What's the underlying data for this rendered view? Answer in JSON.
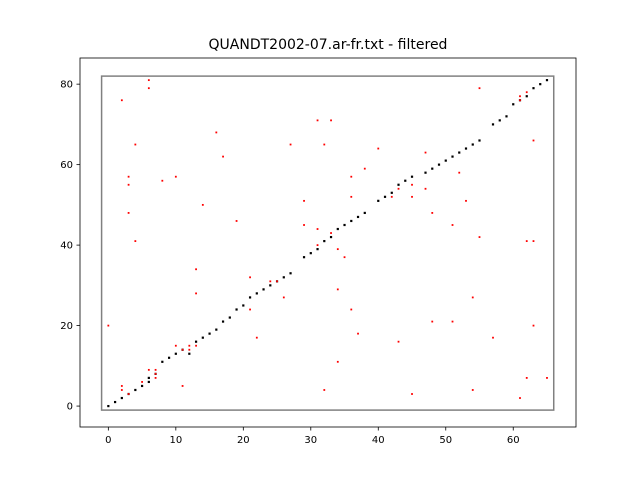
{
  "chart_data": {
    "type": "scatter",
    "title": "QUANDT2002-07.ar-fr.txt - filtered",
    "xlabel": "",
    "ylabel": "",
    "xlim": [
      -4.2,
      69.3
    ],
    "ylim": [
      -5.2,
      86.5
    ],
    "xticks": [
      0,
      10,
      20,
      30,
      40,
      50,
      60
    ],
    "yticks": [
      0,
      20,
      40,
      60,
      80
    ],
    "grid": false,
    "colors": {
      "aligned": "#000000",
      "filtered": "#ff0000",
      "box": "#808080"
    },
    "box": {
      "x": [
        -1,
        66
      ],
      "y": [
        -1,
        82
      ]
    },
    "series": [
      {
        "marker": "aligned",
        "points": [
          [
            0,
            0
          ],
          [
            1,
            1
          ],
          [
            2,
            2
          ],
          [
            3,
            3
          ],
          [
            4,
            4
          ],
          [
            5,
            5
          ],
          [
            6,
            6
          ],
          [
            6,
            7
          ],
          [
            7,
            8
          ],
          [
            8,
            11
          ],
          [
            9,
            12
          ],
          [
            10,
            13
          ],
          [
            11,
            14
          ],
          [
            12,
            13
          ],
          [
            13,
            16
          ],
          [
            14,
            17
          ],
          [
            15,
            18
          ],
          [
            16,
            19
          ],
          [
            17,
            21
          ],
          [
            18,
            22
          ],
          [
            19,
            24
          ],
          [
            20,
            25
          ],
          [
            21,
            27
          ],
          [
            22,
            28
          ],
          [
            23,
            29
          ],
          [
            24,
            30
          ],
          [
            25,
            31
          ],
          [
            26,
            32
          ],
          [
            27,
            33
          ],
          [
            29,
            37
          ],
          [
            30,
            38
          ],
          [
            31,
            39
          ],
          [
            32,
            41
          ],
          [
            33,
            42
          ],
          [
            34,
            44
          ],
          [
            35,
            45
          ],
          [
            36,
            46
          ],
          [
            37,
            47
          ],
          [
            38,
            48
          ],
          [
            40,
            51
          ],
          [
            41,
            52
          ],
          [
            42,
            53
          ],
          [
            43,
            55
          ],
          [
            44,
            56
          ],
          [
            45,
            57
          ],
          [
            47,
            58
          ],
          [
            48,
            59
          ],
          [
            49,
            60
          ],
          [
            50,
            61
          ],
          [
            51,
            62
          ],
          [
            52,
            63
          ],
          [
            53,
            64
          ],
          [
            54,
            65
          ],
          [
            55,
            66
          ],
          [
            57,
            70
          ],
          [
            58,
            71
          ],
          [
            59,
            72
          ],
          [
            60,
            75
          ],
          [
            61,
            76
          ],
          [
            62,
            77
          ],
          [
            63,
            79
          ],
          [
            64,
            80
          ],
          [
            65,
            81
          ]
        ]
      },
      {
        "marker": "filtered",
        "points": [
          [
            0,
            20
          ],
          [
            2,
            76
          ],
          [
            2,
            5
          ],
          [
            2,
            4
          ],
          [
            3,
            3
          ],
          [
            3,
            57
          ],
          [
            3,
            55
          ],
          [
            3,
            48
          ],
          [
            4,
            65
          ],
          [
            4,
            41
          ],
          [
            5,
            6
          ],
          [
            6,
            81
          ],
          [
            6,
            79
          ],
          [
            6,
            9
          ],
          [
            7,
            9
          ],
          [
            7,
            8
          ],
          [
            7,
            7
          ],
          [
            8,
            56
          ],
          [
            10,
            57
          ],
          [
            10,
            15
          ],
          [
            11,
            5
          ],
          [
            11,
            14
          ],
          [
            12,
            15
          ],
          [
            12,
            14
          ],
          [
            13,
            34
          ],
          [
            13,
            28
          ],
          [
            13,
            15
          ],
          [
            14,
            50
          ],
          [
            16,
            68
          ],
          [
            17,
            62
          ],
          [
            19,
            46
          ],
          [
            21,
            32
          ],
          [
            21,
            24
          ],
          [
            22,
            17
          ],
          [
            24,
            31
          ],
          [
            25,
            31
          ],
          [
            26,
            27
          ],
          [
            27,
            65
          ],
          [
            29,
            51
          ],
          [
            29,
            45
          ],
          [
            31,
            71
          ],
          [
            31,
            44
          ],
          [
            31,
            40
          ],
          [
            32,
            65
          ],
          [
            32,
            4
          ],
          [
            33,
            71
          ],
          [
            33,
            43
          ],
          [
            34,
            39
          ],
          [
            34,
            29
          ],
          [
            34,
            11
          ],
          [
            35,
            37
          ],
          [
            36,
            57
          ],
          [
            36,
            52
          ],
          [
            36,
            24
          ],
          [
            37,
            18
          ],
          [
            38,
            59
          ],
          [
            40,
            64
          ],
          [
            42,
            52
          ],
          [
            43,
            54
          ],
          [
            43,
            16
          ],
          [
            45,
            55
          ],
          [
            45,
            52
          ],
          [
            45,
            3
          ],
          [
            47,
            63
          ],
          [
            47,
            54
          ],
          [
            48,
            48
          ],
          [
            48,
            21
          ],
          [
            51,
            45
          ],
          [
            51,
            21
          ],
          [
            52,
            58
          ],
          [
            53,
            51
          ],
          [
            54,
            27
          ],
          [
            54,
            4
          ],
          [
            55,
            79
          ],
          [
            55,
            42
          ],
          [
            57,
            17
          ],
          [
            61,
            77
          ],
          [
            61,
            76
          ],
          [
            61,
            2
          ],
          [
            62,
            78
          ],
          [
            62,
            41
          ],
          [
            62,
            7
          ],
          [
            63,
            66
          ],
          [
            63,
            41
          ],
          [
            63,
            20
          ],
          [
            65,
            7
          ]
        ]
      }
    ]
  }
}
